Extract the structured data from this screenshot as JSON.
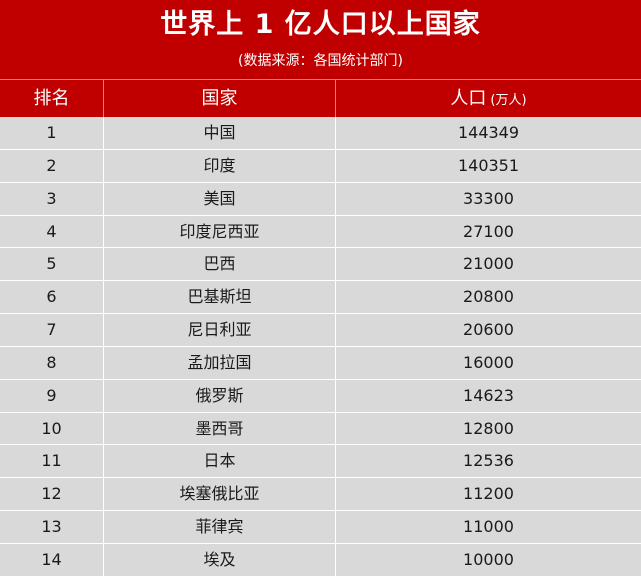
{
  "header": {
    "title": "世界上 1 亿人口以上国家",
    "subtitle": "(数据来源：各国统计部门)"
  },
  "table": {
    "columns": {
      "rank": "排名",
      "country": "国家",
      "population": "人口",
      "population_unit": "(万人)"
    },
    "rows": [
      {
        "rank": "1",
        "country": "中国",
        "population": "144349"
      },
      {
        "rank": "2",
        "country": "印度",
        "population": "140351"
      },
      {
        "rank": "3",
        "country": "美国",
        "population": "33300"
      },
      {
        "rank": "4",
        "country": "印度尼西亚",
        "population": "27100"
      },
      {
        "rank": "5",
        "country": "巴西",
        "population": "21000"
      },
      {
        "rank": "6",
        "country": "巴基斯坦",
        "population": "20800"
      },
      {
        "rank": "7",
        "country": "尼日利亚",
        "population": "20600"
      },
      {
        "rank": "8",
        "country": "孟加拉国",
        "population": "16000"
      },
      {
        "rank": "9",
        "country": "俄罗斯",
        "population": "14623"
      },
      {
        "rank": "10",
        "country": "墨西哥",
        "population": "12800"
      },
      {
        "rank": "11",
        "country": "日本",
        "population": "12536"
      },
      {
        "rank": "12",
        "country": "埃塞俄比亚",
        "population": "11200"
      },
      {
        "rank": "13",
        "country": "菲律宾",
        "population": "11000"
      },
      {
        "rank": "14",
        "country": "埃及",
        "population": "10000"
      }
    ]
  },
  "colors": {
    "header_background": "#c00000",
    "header_text": "#ffffff",
    "row_background": "#d9d9d9",
    "row_text": "#1a1a1a"
  }
}
